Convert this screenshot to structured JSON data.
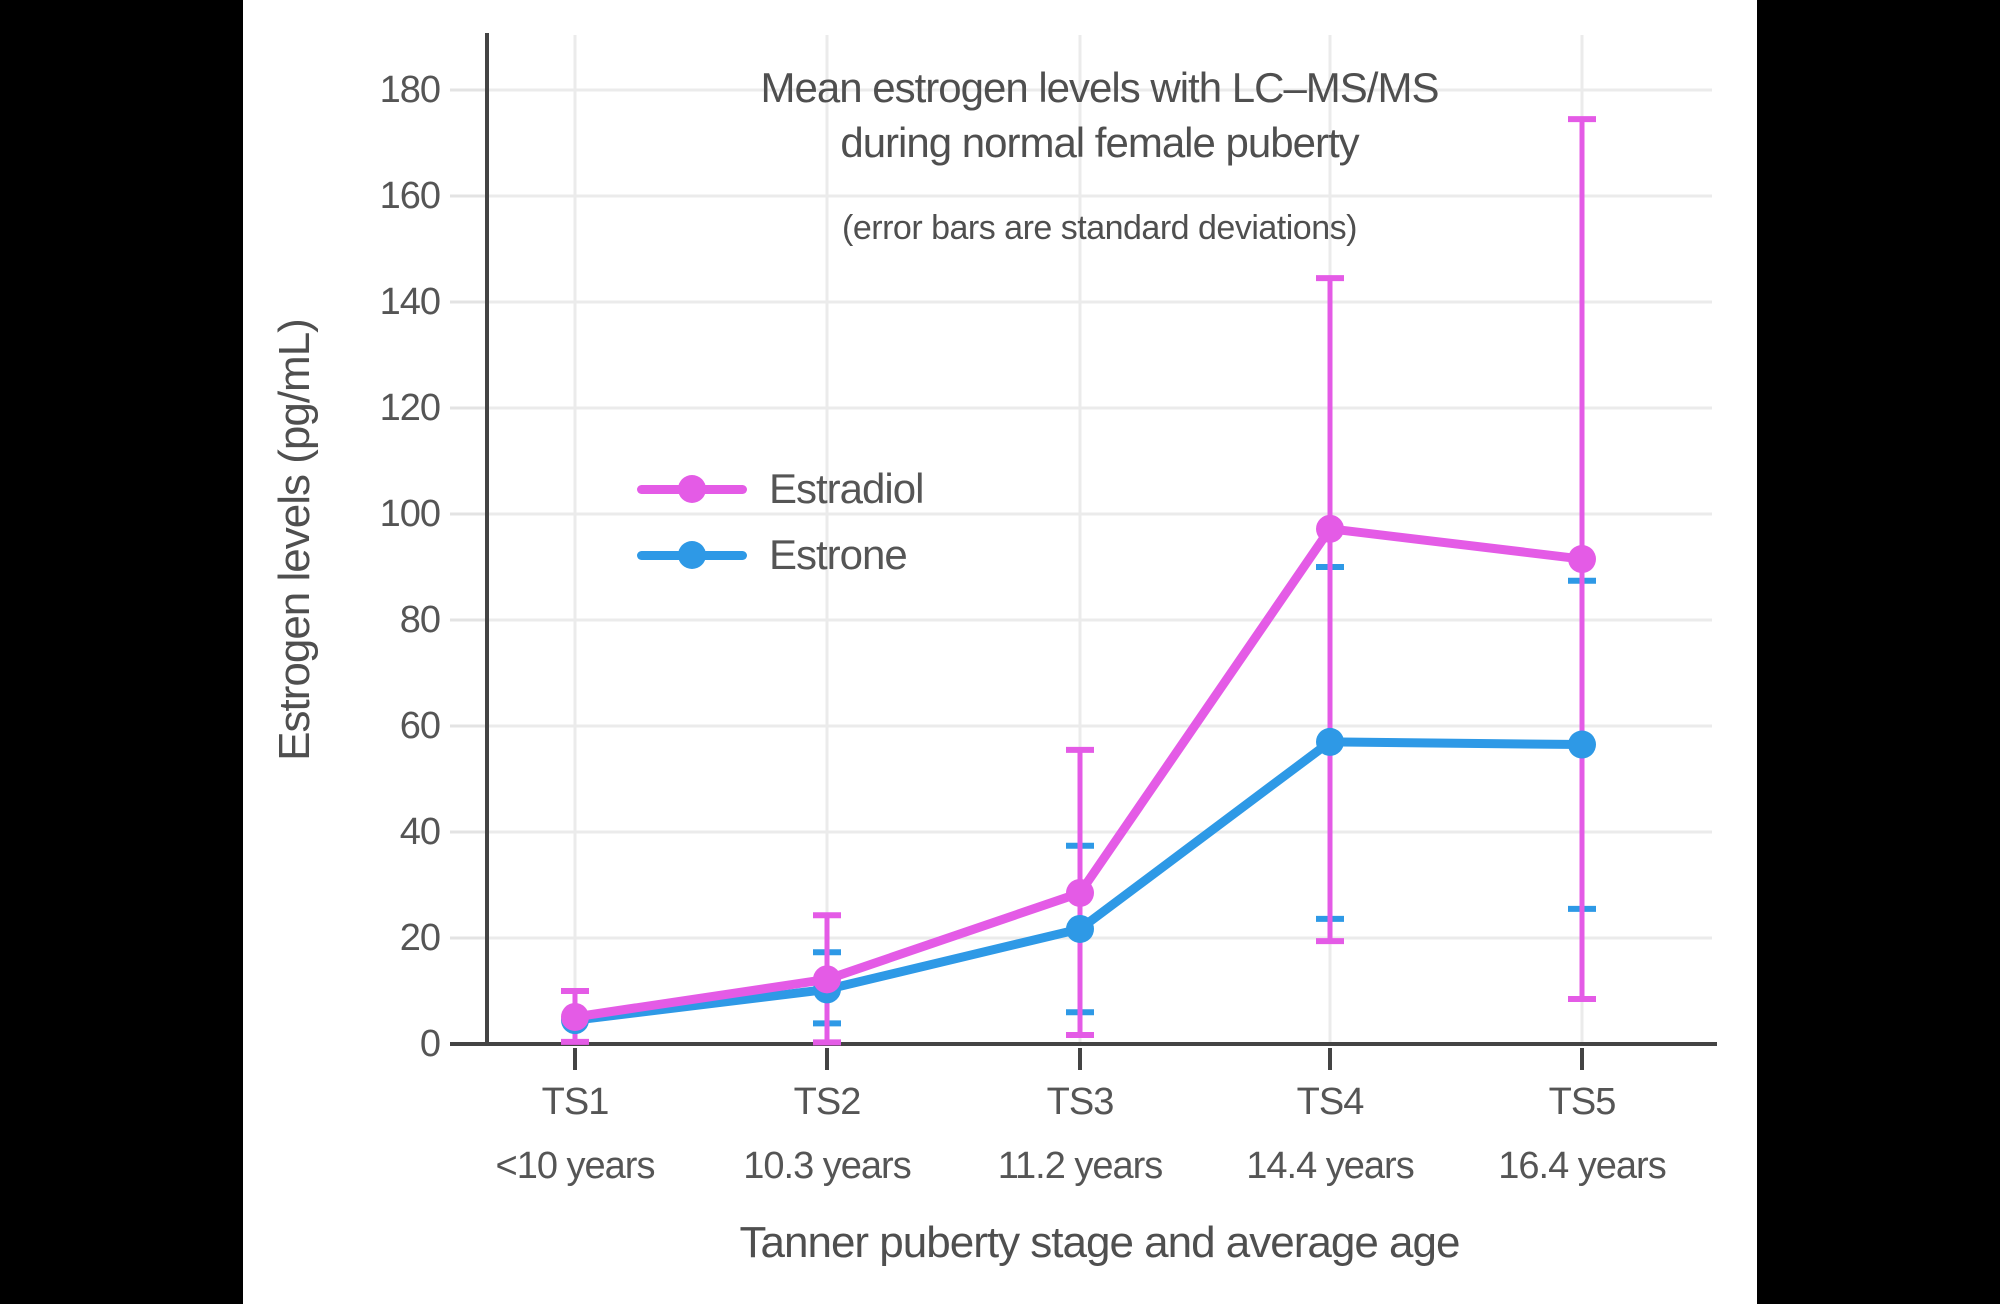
{
  "title": {
    "line1": "Mean estrogen levels with LC–MS/MS",
    "line2": "during normal female puberty",
    "subtitle": "(error bars are standard deviations)"
  },
  "chart_data": {
    "type": "line",
    "title": "Mean estrogen levels with LC–MS/MS during normal female puberty",
    "subtitle": "(error bars are standard deviations)",
    "xlabel": "Tanner puberty stage and average age",
    "ylabel": "Estrogen levels (pg/mL)",
    "categories": [
      "TS1",
      "TS2",
      "TS3",
      "TS4",
      "TS5"
    ],
    "category_sublabels": [
      "<10 years",
      "10.3 years",
      "11.2 years",
      "14.4 years",
      "16.4 years"
    ],
    "yticks": [
      0,
      20,
      40,
      60,
      80,
      100,
      120,
      140,
      160,
      180
    ],
    "ylim": [
      0,
      190
    ],
    "grid": true,
    "legend_position": "inside-upper-left",
    "series": [
      {
        "name": "Estradiol",
        "color": "#E45BE6",
        "values": [
          5.1,
          12.2,
          28.5,
          97.2,
          91.5
        ],
        "sd_upper": [
          10.0,
          24.3,
          55.5,
          144.5,
          174.5
        ],
        "sd_lower": [
          0.4,
          0.3,
          1.7,
          19.4,
          8.5
        ]
      },
      {
        "name": "Estrone",
        "color": "#2E99E6",
        "values": [
          4.5,
          10.3,
          21.7,
          57.0,
          56.5
        ],
        "sd_upper": [
          null,
          17.3,
          37.4,
          90.0,
          87.4
        ],
        "sd_lower": [
          null,
          3.9,
          6.0,
          23.6,
          25.5
        ]
      }
    ],
    "colors": {
      "axis": "#444444",
      "gridline": "#ebebeb",
      "tick_stub": "#e3e3e3",
      "text": "#555555",
      "background": "#ffffff",
      "letterbox": "#000000"
    }
  }
}
